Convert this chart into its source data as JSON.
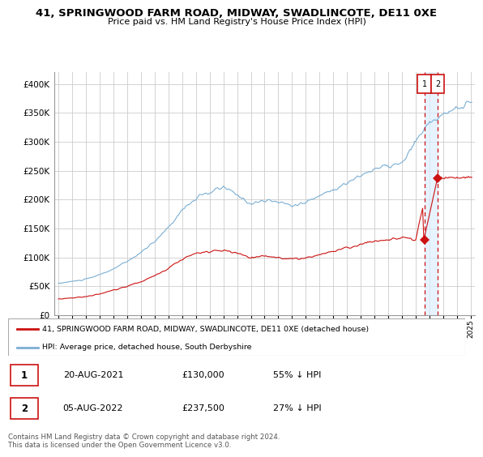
{
  "title": "41, SPRINGWOOD FARM ROAD, MIDWAY, SWADLINCOTE, DE11 0XE",
  "subtitle": "Price paid vs. HM Land Registry's House Price Index (HPI)",
  "hpi_color": "#7bafd4",
  "price_color": "#cc1111",
  "dashed_color": "#cc1111",
  "shade_color": "#ddeeff",
  "background_color": "#ffffff",
  "grid_color": "#cccccc",
  "legend_label_red": "41, SPRINGWOOD FARM ROAD, MIDWAY, SWADLINCOTE, DE11 0XE (detached house)",
  "legend_label_blue": "HPI: Average price, detached house, South Derbyshire",
  "transaction1_date": "20-AUG-2021",
  "transaction1_price": "£130,000",
  "transaction1_pct": "55% ↓ HPI",
  "transaction2_date": "05-AUG-2022",
  "transaction2_price": "£237,500",
  "transaction2_pct": "27% ↓ HPI",
  "footnote": "Contains HM Land Registry data © Crown copyright and database right 2024.\nThis data is licensed under the Open Government Licence v3.0.",
  "transaction1_x": 2021.62,
  "transaction1_y": 130000,
  "transaction2_x": 2022.59,
  "transaction2_y": 237500,
  "xlim_left": 1994.7,
  "xlim_right": 2025.3,
  "ylim": [
    0,
    420000
  ],
  "yticks": [
    0,
    50000,
    100000,
    150000,
    200000,
    250000,
    300000,
    350000,
    400000
  ]
}
